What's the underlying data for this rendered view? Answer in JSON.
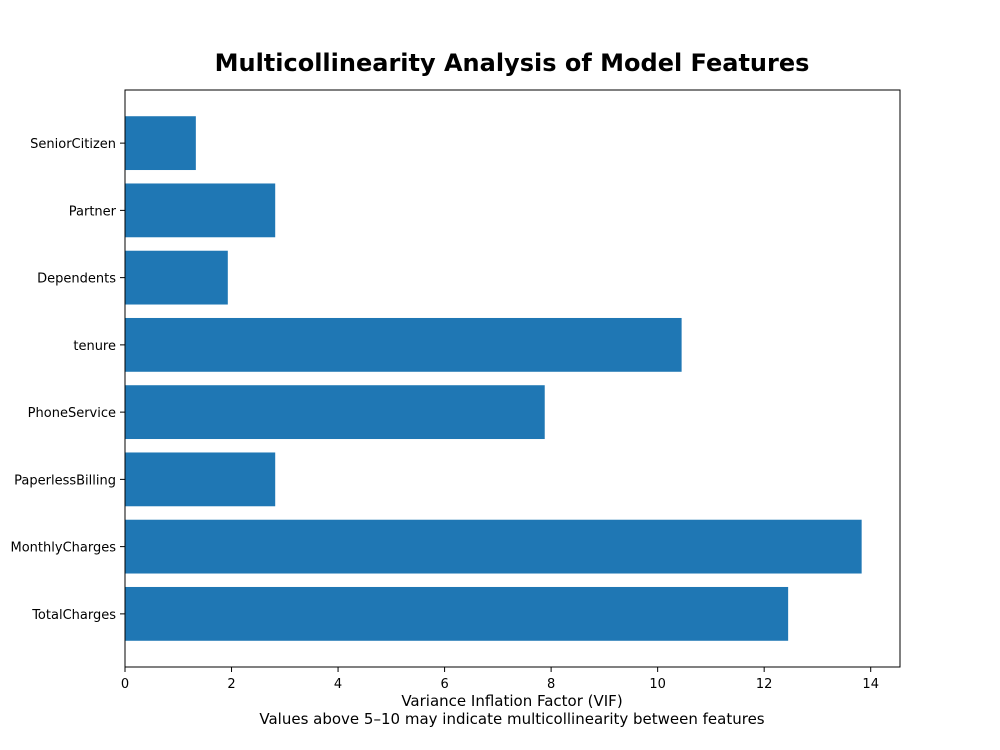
{
  "chart_data": {
    "type": "bar",
    "orientation": "horizontal",
    "title": "Multicollinearity Analysis of Model Features",
    "xlabel": "Variance Inflation Factor (VIF)",
    "caption": "Values above 5–10 may indicate multicollinearity between features",
    "ylabel": "",
    "categories": [
      "SeniorCitizen",
      "Partner",
      "Dependents",
      "tenure",
      "PhoneService",
      "PaperlessBilling",
      "MonthlyCharges",
      "TotalCharges"
    ],
    "values": [
      1.33,
      2.82,
      1.93,
      10.45,
      7.88,
      2.82,
      13.83,
      12.45
    ],
    "xlim": [
      0,
      14.55
    ],
    "xticks": [
      0,
      2,
      4,
      6,
      8,
      10,
      12,
      14
    ],
    "bar_color": "#1f77b4",
    "grid": false,
    "legend": false
  }
}
